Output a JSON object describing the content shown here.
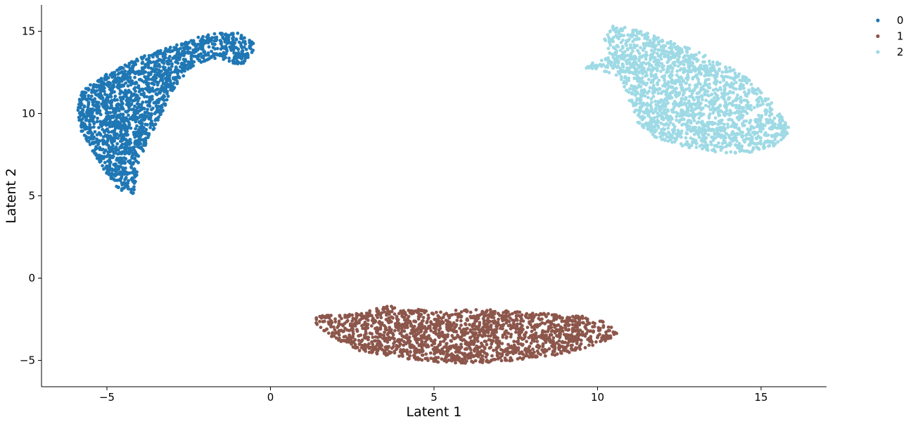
{
  "chart_data": {
    "type": "scatter",
    "title": "",
    "xlabel": "Latent 1",
    "ylabel": "Latent 2",
    "xlim": [
      -7,
      17
    ],
    "ylim": [
      -6.6,
      16.6
    ],
    "xticks": [
      -5,
      0,
      5,
      10,
      15
    ],
    "yticks": [
      -5,
      0,
      5,
      10,
      15
    ],
    "x_tick_labels": [
      "−5",
      "0",
      "5",
      "10",
      "15"
    ],
    "y_tick_labels": [
      "−5",
      "0",
      "5",
      "10",
      "15"
    ],
    "grid": false,
    "legend_position": "top-right, outside plot area",
    "series": [
      {
        "name": "0",
        "color": "#1f77b4",
        "outline": [
          [
            -5.9,
            10.3
          ],
          [
            -5.8,
            11.3
          ],
          [
            -5.2,
            12.2
          ],
          [
            -4.6,
            12.8
          ],
          [
            -4.0,
            13.4
          ],
          [
            -3.3,
            13.9
          ],
          [
            -2.6,
            14.4
          ],
          [
            -1.8,
            14.9
          ],
          [
            -1.0,
            14.9
          ],
          [
            -0.4,
            14.3
          ],
          [
            -0.6,
            13.6
          ],
          [
            -0.9,
            12.9
          ],
          [
            -1.6,
            13.4
          ],
          [
            -2.3,
            13.0
          ],
          [
            -2.7,
            12.2
          ],
          [
            -3.1,
            11.0
          ],
          [
            -3.4,
            9.6
          ],
          [
            -3.8,
            8.2
          ],
          [
            -4.0,
            6.6
          ],
          [
            -4.2,
            5.1
          ],
          [
            -4.6,
            5.3
          ],
          [
            -5.0,
            6.3
          ],
          [
            -5.4,
            7.6
          ],
          [
            -5.8,
            9.0
          ]
        ],
        "count": 1800
      },
      {
        "name": "1",
        "color": "#8c564b",
        "outline": [
          [
            1.4,
            -2.3
          ],
          [
            2.5,
            -2.2
          ],
          [
            3.6,
            -1.7
          ],
          [
            5.0,
            -2.0
          ],
          [
            6.5,
            -1.9
          ],
          [
            8.0,
            -2.1
          ],
          [
            9.5,
            -2.3
          ],
          [
            10.4,
            -2.7
          ],
          [
            10.6,
            -3.4
          ],
          [
            10.2,
            -3.9
          ],
          [
            9.0,
            -4.6
          ],
          [
            7.5,
            -5.0
          ],
          [
            6.0,
            -5.2
          ],
          [
            5.0,
            -5.1
          ],
          [
            3.8,
            -4.8
          ],
          [
            2.7,
            -4.4
          ],
          [
            1.8,
            -3.5
          ],
          [
            1.4,
            -2.8
          ]
        ],
        "count": 1700
      },
      {
        "name": "2",
        "color": "#9edae5",
        "outline": [
          [
            10.5,
            15.4
          ],
          [
            11.5,
            14.9
          ],
          [
            12.5,
            14.2
          ],
          [
            13.5,
            13.4
          ],
          [
            14.5,
            12.3
          ],
          [
            15.3,
            10.8
          ],
          [
            15.9,
            9.0
          ],
          [
            15.5,
            8.1
          ],
          [
            14.6,
            7.6
          ],
          [
            13.8,
            7.6
          ],
          [
            12.8,
            7.9
          ],
          [
            11.8,
            8.5
          ],
          [
            11.2,
            9.5
          ],
          [
            10.9,
            11.2
          ],
          [
            10.7,
            12.2
          ],
          [
            10.0,
            12.7
          ],
          [
            9.3,
            12.8
          ],
          [
            8.9,
            12.7
          ],
          [
            9.6,
            12.9
          ],
          [
            10.4,
            13.5
          ],
          [
            10.2,
            14.5
          ]
        ],
        "count": 1800
      }
    ]
  }
}
